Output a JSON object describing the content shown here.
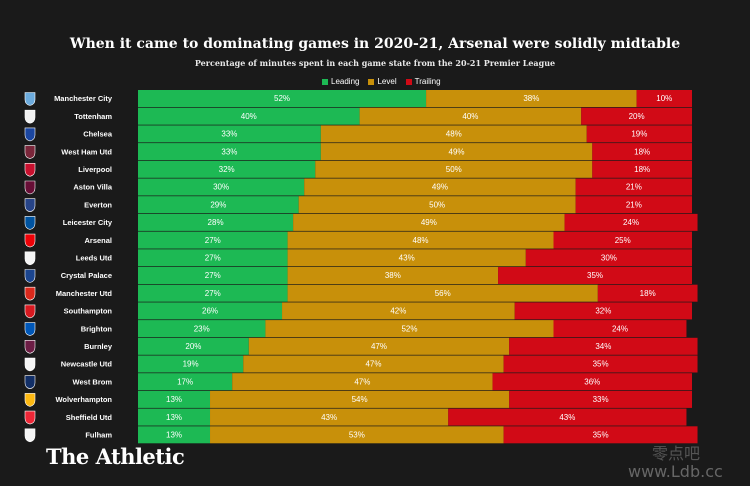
{
  "colors": {
    "leading": "#1db954",
    "level": "#c8900a",
    "trailing": "#d10a16",
    "background": "#1a1a1a"
  },
  "brand": "The Athletic",
  "watermark": {
    "cn": "零点吧",
    "url": "www.Ldb.cc"
  },
  "chart_data": {
    "type": "bar",
    "stacked": true,
    "orientation": "horizontal",
    "normalized": true,
    "title": "When it came to dominating games in 2020-21, Arsenal were solidly midtable",
    "subtitle": "Percentage of minutes spent in each game state from the 20-21 Premier League",
    "legend_position": "top-center",
    "xlim": [
      0,
      100
    ],
    "categories": [
      "Manchester City",
      "Tottenham",
      "Chelsea",
      "West Ham Utd",
      "Liverpool",
      "Aston Villa",
      "Everton",
      "Leicester City",
      "Arsenal",
      "Leeds Utd",
      "Crystal Palace",
      "Manchester Utd",
      "Southampton",
      "Brighton",
      "Burnley",
      "Newcastle Utd",
      "West Brom",
      "Wolverhampton",
      "Sheffield Utd",
      "Fulham"
    ],
    "series": [
      {
        "name": "Leading",
        "values": [
          52,
          40,
          33,
          33,
          32,
          30,
          29,
          28,
          27,
          27,
          27,
          27,
          26,
          23,
          20,
          19,
          17,
          13,
          13,
          13
        ]
      },
      {
        "name": "Level",
        "values": [
          38,
          40,
          48,
          49,
          50,
          49,
          50,
          49,
          48,
          43,
          38,
          56,
          42,
          52,
          47,
          47,
          47,
          54,
          43,
          53
        ]
      },
      {
        "name": "Trailing",
        "values": [
          10,
          20,
          19,
          18,
          18,
          21,
          21,
          24,
          25,
          30,
          35,
          18,
          32,
          24,
          34,
          35,
          36,
          33,
          43,
          35
        ]
      }
    ],
    "icons": [
      "man-city-crest-icon",
      "tottenham-crest-icon",
      "chelsea-crest-icon",
      "west-ham-crest-icon",
      "liverpool-crest-icon",
      "aston-villa-crest-icon",
      "everton-crest-icon",
      "leicester-crest-icon",
      "arsenal-crest-icon",
      "leeds-crest-icon",
      "crystal-palace-crest-icon",
      "man-utd-crest-icon",
      "southampton-crest-icon",
      "brighton-crest-icon",
      "burnley-crest-icon",
      "newcastle-crest-icon",
      "west-brom-crest-icon",
      "wolves-crest-icon",
      "sheffield-utd-crest-icon",
      "fulham-crest-icon"
    ],
    "icon_colors": [
      "#6cabdd",
      "#f2f2f2",
      "#1b46a0",
      "#7a263a",
      "#c8102e",
      "#670e36",
      "#274488",
      "#0053a0",
      "#ef0107",
      "#f5f5f5",
      "#1b458f",
      "#da291c",
      "#d71920",
      "#0057b8",
      "#6c1d45",
      "#f5f5f5",
      "#122f67",
      "#fdb913",
      "#ee2737",
      "#f5f5f5"
    ]
  }
}
